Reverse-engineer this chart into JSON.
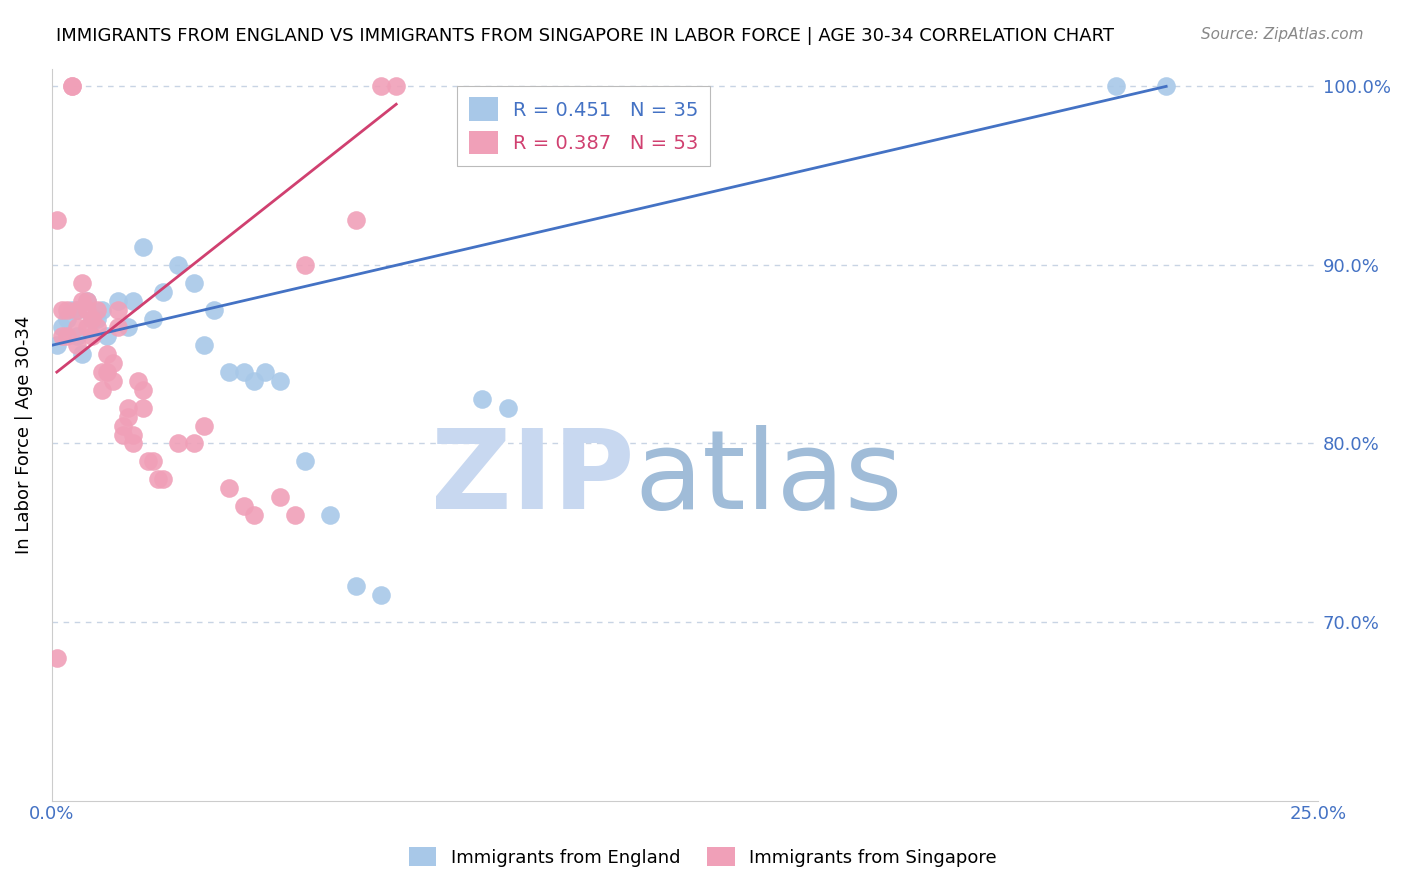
{
  "title": "IMMIGRANTS FROM ENGLAND VS IMMIGRANTS FROM SINGAPORE IN LABOR FORCE | AGE 30-34 CORRELATION CHART",
  "source": "Source: ZipAtlas.com",
  "ylabel": "In Labor Force | Age 30-34",
  "xlim": [
    0.0,
    0.25
  ],
  "ylim": [
    0.6,
    1.01
  ],
  "yticks": [
    0.7,
    0.8,
    0.9,
    1.0
  ],
  "yticklabels": [
    "70.0%",
    "80.0%",
    "90.0%",
    "100.0%"
  ],
  "england_color": "#a8c8e8",
  "singapore_color": "#f0a0b8",
  "england_line_color": "#4472c4",
  "singapore_line_color": "#d04070",
  "england_R": 0.451,
  "england_N": 35,
  "singapore_R": 0.387,
  "singapore_N": 53,
  "watermark_zip_color": "#c8d8f0",
  "watermark_atlas_color": "#a0bcd8",
  "grid_color": "#c8d4e4",
  "title_fontsize": 13,
  "tick_color": "#4472c4",
  "england_x": [
    0.001,
    0.002,
    0.003,
    0.004,
    0.005,
    0.005,
    0.006,
    0.007,
    0.008,
    0.009,
    0.01,
    0.011,
    0.013,
    0.015,
    0.016,
    0.018,
    0.02,
    0.022,
    0.025,
    0.028,
    0.03,
    0.032,
    0.035,
    0.038,
    0.04,
    0.042,
    0.045,
    0.05,
    0.055,
    0.06,
    0.065,
    0.085,
    0.09,
    0.21,
    0.22
  ],
  "england_y": [
    0.855,
    0.865,
    0.87,
    0.875,
    0.86,
    0.875,
    0.85,
    0.88,
    0.87,
    0.87,
    0.875,
    0.86,
    0.88,
    0.865,
    0.88,
    0.91,
    0.87,
    0.885,
    0.9,
    0.89,
    0.855,
    0.875,
    0.84,
    0.84,
    0.835,
    0.84,
    0.835,
    0.79,
    0.76,
    0.72,
    0.715,
    0.825,
    0.82,
    1.0,
    1.0
  ],
  "singapore_x": [
    0.001,
    0.002,
    0.002,
    0.003,
    0.003,
    0.004,
    0.004,
    0.005,
    0.005,
    0.005,
    0.006,
    0.006,
    0.007,
    0.007,
    0.007,
    0.008,
    0.008,
    0.009,
    0.009,
    0.01,
    0.01,
    0.011,
    0.011,
    0.012,
    0.012,
    0.013,
    0.013,
    0.014,
    0.014,
    0.015,
    0.015,
    0.016,
    0.016,
    0.017,
    0.018,
    0.018,
    0.019,
    0.02,
    0.021,
    0.022,
    0.025,
    0.028,
    0.03,
    0.035,
    0.038,
    0.04,
    0.045,
    0.048,
    0.05,
    0.06,
    0.065,
    0.068,
    0.001
  ],
  "singapore_y": [
    0.68,
    0.875,
    0.86,
    0.875,
    0.86,
    1.0,
    1.0,
    0.875,
    0.865,
    0.855,
    0.89,
    0.88,
    0.88,
    0.875,
    0.865,
    0.87,
    0.86,
    0.875,
    0.865,
    0.84,
    0.83,
    0.85,
    0.84,
    0.845,
    0.835,
    0.875,
    0.865,
    0.81,
    0.805,
    0.82,
    0.815,
    0.805,
    0.8,
    0.835,
    0.83,
    0.82,
    0.79,
    0.79,
    0.78,
    0.78,
    0.8,
    0.8,
    0.81,
    0.775,
    0.765,
    0.76,
    0.77,
    0.76,
    0.9,
    0.925,
    1.0,
    1.0,
    0.925
  ],
  "england_line_x": [
    0.0,
    0.22
  ],
  "england_line_y": [
    0.855,
    1.0
  ],
  "singapore_line_x": [
    0.001,
    0.068
  ],
  "singapore_line_y": [
    0.84,
    0.99
  ]
}
